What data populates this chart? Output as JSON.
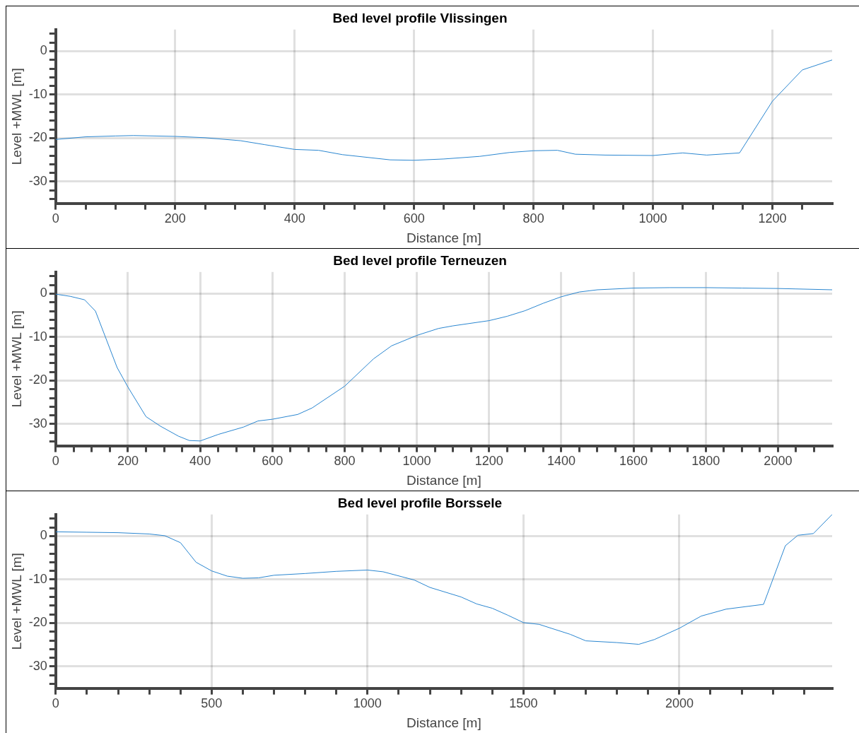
{
  "chart_data": [
    {
      "type": "line",
      "title": "Bed level profile Vlissingen",
      "xlabel": "Distance [m]",
      "ylabel": "Level +MWL [m]",
      "grid": true,
      "legend": false,
      "color": "#2a86d0",
      "x": [
        0,
        50,
        100,
        130,
        200,
        250,
        310,
        350,
        400,
        440,
        480,
        560,
        600,
        650,
        710,
        760,
        800,
        840,
        870,
        920,
        1000,
        1050,
        1090,
        1145,
        1200,
        1250,
        1300
      ],
      "values": [
        -20.3,
        -19.7,
        -19.5,
        -19.4,
        -19.6,
        -19.9,
        -20.6,
        -21.5,
        -22.6,
        -22.8,
        -23.8,
        -25.0,
        -25.1,
        -24.8,
        -24.2,
        -23.3,
        -22.9,
        -22.8,
        -23.7,
        -23.9,
        -24.0,
        -23.4,
        -23.9,
        -23.4,
        -11.5,
        -4.3,
        -2.0
      ],
      "xlim": [
        0,
        1300
      ],
      "xticks": [
        0,
        {
          "value": 50,
          "label": null
        },
        {
          "value": 100,
          "label": null
        },
        {
          "value": 150,
          "label": null
        },
        200,
        {
          "value": 250,
          "label": null
        },
        {
          "value": 300,
          "label": null
        },
        {
          "value": 350,
          "label": null
        },
        400,
        {
          "value": 450,
          "label": null
        },
        {
          "value": 500,
          "label": null
        },
        {
          "value": 550,
          "label": null
        },
        600,
        {
          "value": 650,
          "label": null
        },
        {
          "value": 700,
          "label": null
        },
        {
          "value": 750,
          "label": null
        },
        800,
        {
          "value": 850,
          "label": null
        },
        {
          "value": 900,
          "label": null
        },
        {
          "value": 950,
          "label": null
        },
        1000,
        {
          "value": 1050,
          "label": null
        },
        {
          "value": 1100,
          "label": null
        },
        {
          "value": 1150,
          "label": null
        },
        1200,
        {
          "value": 1250,
          "label": null
        }
      ],
      "ylim": [
        -35,
        5
      ],
      "yticks": [
        {
          "value": -34,
          "label": null
        },
        {
          "value": -32,
          "label": null
        },
        -30,
        {
          "value": -28,
          "label": null
        },
        {
          "value": -26,
          "label": null
        },
        {
          "value": -24,
          "label": null
        },
        {
          "value": -22,
          "label": null
        },
        -20,
        {
          "value": -18,
          "label": null
        },
        {
          "value": -16,
          "label": null
        },
        {
          "value": -14,
          "label": null
        },
        {
          "value": -12,
          "label": null
        },
        -10,
        {
          "value": -8,
          "label": null
        },
        {
          "value": -6,
          "label": null
        },
        {
          "value": -4,
          "label": null
        },
        {
          "value": -2,
          "label": null
        },
        0,
        {
          "value": 2,
          "label": null
        },
        {
          "value": 4,
          "label": null
        }
      ]
    },
    {
      "type": "line",
      "title": "Bed level profile Terneuzen",
      "xlabel": "Distance [m]",
      "ylabel": "Level +MWL [m]",
      "grid": true,
      "legend": false,
      "color": "#2a86d0",
      "x": [
        0,
        40,
        80,
        110,
        170,
        200,
        250,
        290,
        340,
        370,
        400,
        450,
        520,
        560,
        600,
        670,
        710,
        800,
        880,
        930,
        1000,
        1060,
        1100,
        1200,
        1250,
        1300,
        1350,
        1400,
        1450,
        1500,
        1600,
        1700,
        1800,
        1900,
        2000,
        2050,
        2150
      ],
      "values": [
        -0.1,
        -0.6,
        -1.4,
        -4,
        -17,
        -21.5,
        -28.3,
        -30.5,
        -32.8,
        -33.8,
        -33.9,
        -32.4,
        -30.7,
        -29.3,
        -28.9,
        -27.8,
        -26.3,
        -21.3,
        -15,
        -12,
        -9.6,
        -8,
        -7.4,
        -6.2,
        -5.2,
        -3.9,
        -2.2,
        -0.7,
        0.4,
        0.9,
        1.3,
        1.4,
        1.4,
        1.3,
        1.2,
        1.1,
        0.9
      ],
      "xlim": [
        0,
        2150
      ],
      "xticks": [
        0,
        {
          "value": 50,
          "label": null
        },
        {
          "value": 100,
          "label": null
        },
        {
          "value": 150,
          "label": null
        },
        200,
        {
          "value": 250,
          "label": null
        },
        {
          "value": 300,
          "label": null
        },
        {
          "value": 350,
          "label": null
        },
        400,
        {
          "value": 450,
          "label": null
        },
        {
          "value": 500,
          "label": null
        },
        {
          "value": 550,
          "label": null
        },
        600,
        {
          "value": 650,
          "label": null
        },
        {
          "value": 700,
          "label": null
        },
        {
          "value": 750,
          "label": null
        },
        800,
        {
          "value": 850,
          "label": null
        },
        {
          "value": 900,
          "label": null
        },
        {
          "value": 950,
          "label": null
        },
        1000,
        {
          "value": 1050,
          "label": null
        },
        {
          "value": 1100,
          "label": null
        },
        {
          "value": 1150,
          "label": null
        },
        1200,
        {
          "value": 1250,
          "label": null
        },
        {
          "value": 1300,
          "label": null
        },
        {
          "value": 1350,
          "label": null
        },
        1400,
        {
          "value": 1450,
          "label": null
        },
        {
          "value": 1500,
          "label": null
        },
        {
          "value": 1550,
          "label": null
        },
        1600,
        {
          "value": 1650,
          "label": null
        },
        {
          "value": 1700,
          "label": null
        },
        {
          "value": 1750,
          "label": null
        },
        1800,
        {
          "value": 1850,
          "label": null
        },
        {
          "value": 1900,
          "label": null
        },
        {
          "value": 1950,
          "label": null
        },
        2000,
        {
          "value": 2050,
          "label": null
        },
        {
          "value": 2100,
          "label": null
        }
      ],
      "ylim": [
        -35,
        5
      ],
      "yticks": [
        {
          "value": -34,
          "label": null
        },
        {
          "value": -32,
          "label": null
        },
        -30,
        {
          "value": -28,
          "label": null
        },
        {
          "value": -26,
          "label": null
        },
        {
          "value": -24,
          "label": null
        },
        {
          "value": -22,
          "label": null
        },
        -20,
        {
          "value": -18,
          "label": null
        },
        {
          "value": -16,
          "label": null
        },
        {
          "value": -14,
          "label": null
        },
        {
          "value": -12,
          "label": null
        },
        -10,
        {
          "value": -8,
          "label": null
        },
        {
          "value": -6,
          "label": null
        },
        {
          "value": -4,
          "label": null
        },
        {
          "value": -2,
          "label": null
        },
        0,
        {
          "value": 2,
          "label": null
        },
        {
          "value": 4,
          "label": null
        }
      ]
    },
    {
      "type": "line",
      "title": "Bed level profile Borssele",
      "xlabel": "Distance [m]",
      "ylabel": "Level +MWL [m]",
      "grid": true,
      "legend": false,
      "color": "#2a86d0",
      "x": [
        0,
        100,
        200,
        300,
        350,
        400,
        450,
        500,
        550,
        600,
        650,
        700,
        800,
        900,
        1000,
        1050,
        1150,
        1200,
        1300,
        1350,
        1400,
        1450,
        1500,
        1550,
        1650,
        1700,
        1800,
        1870,
        1920,
        2000,
        2070,
        2150,
        2270,
        2340,
        2380,
        2430,
        2490
      ],
      "values": [
        1,
        0.9,
        0.8,
        0.5,
        0.1,
        -1.5,
        -6,
        -8,
        -9.2,
        -9.7,
        -9.6,
        -9,
        -8.6,
        -8.1,
        -7.8,
        -8.2,
        -10.1,
        -11.8,
        -14,
        -15.6,
        -16.6,
        -18.2,
        -19.9,
        -20.3,
        -22.6,
        -24.1,
        -24.5,
        -24.9,
        -23.8,
        -21.2,
        -18.4,
        -16.8,
        -15.7,
        -2.2,
        0.2,
        0.6,
        5
      ],
      "xlim": [
        0,
        2490
      ],
      "xticks": [
        0,
        {
          "value": 100,
          "label": null
        },
        {
          "value": 200,
          "label": null
        },
        {
          "value": 300,
          "label": null
        },
        {
          "value": 400,
          "label": null
        },
        500,
        {
          "value": 600,
          "label": null
        },
        {
          "value": 700,
          "label": null
        },
        {
          "value": 800,
          "label": null
        },
        {
          "value": 900,
          "label": null
        },
        1000,
        {
          "value": 1100,
          "label": null
        },
        {
          "value": 1200,
          "label": null
        },
        {
          "value": 1300,
          "label": null
        },
        {
          "value": 1400,
          "label": null
        },
        1500,
        {
          "value": 1600,
          "label": null
        },
        {
          "value": 1700,
          "label": null
        },
        {
          "value": 1800,
          "label": null
        },
        {
          "value": 1900,
          "label": null
        },
        2000,
        {
          "value": 2100,
          "label": null
        },
        {
          "value": 2200,
          "label": null
        },
        {
          "value": 2300,
          "label": null
        },
        {
          "value": 2400,
          "label": null
        }
      ],
      "ylim": [
        -35,
        5
      ],
      "yticks": [
        {
          "value": -34,
          "label": null
        },
        {
          "value": -32,
          "label": null
        },
        -30,
        {
          "value": -28,
          "label": null
        },
        {
          "value": -26,
          "label": null
        },
        {
          "value": -24,
          "label": null
        },
        {
          "value": -22,
          "label": null
        },
        -20,
        {
          "value": -18,
          "label": null
        },
        {
          "value": -16,
          "label": null
        },
        {
          "value": -14,
          "label": null
        },
        {
          "value": -12,
          "label": null
        },
        -10,
        {
          "value": -8,
          "label": null
        },
        {
          "value": -6,
          "label": null
        },
        {
          "value": -4,
          "label": null
        },
        {
          "value": -2,
          "label": null
        },
        0,
        {
          "value": 2,
          "label": null
        },
        {
          "value": 4,
          "label": null
        }
      ]
    }
  ]
}
